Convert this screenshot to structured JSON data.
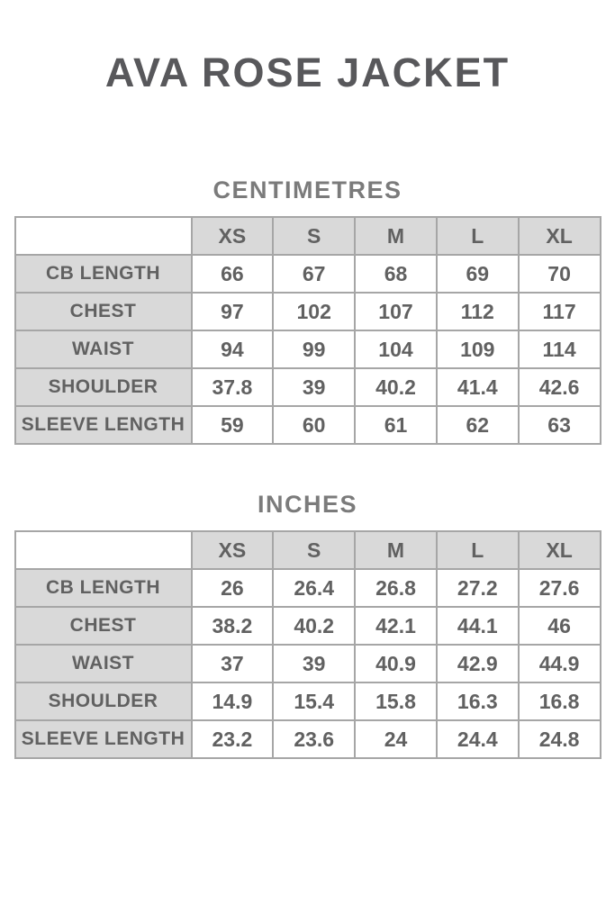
{
  "page": {
    "title": "AVA ROSE JACKET"
  },
  "colors": {
    "page_background": "#ffffff",
    "title_text": "#58585b",
    "heading_text": "#7b7b7b",
    "cell_text": "#616161",
    "grid_border": "#a6a6a6",
    "header_fill": "#d9d9d9",
    "cell_fill": "#ffffff"
  },
  "size_columns": [
    "XS",
    "S",
    "M",
    "L",
    "XL"
  ],
  "tables": [
    {
      "heading": "CENTIMETRES",
      "rows": [
        {
          "label": "CB LENGTH",
          "values": [
            "66",
            "67",
            "68",
            "69",
            "70"
          ]
        },
        {
          "label": "CHEST",
          "values": [
            "97",
            "102",
            "107",
            "112",
            "117"
          ]
        },
        {
          "label": "WAIST",
          "values": [
            "94",
            "99",
            "104",
            "109",
            "114"
          ]
        },
        {
          "label": "SHOULDER",
          "values": [
            "37.8",
            "39",
            "40.2",
            "41.4",
            "42.6"
          ]
        },
        {
          "label": "SLEEVE LENGTH",
          "values": [
            "59",
            "60",
            "61",
            "62",
            "63"
          ]
        }
      ]
    },
    {
      "heading": "INCHES",
      "rows": [
        {
          "label": "CB LENGTH",
          "values": [
            "26",
            "26.4",
            "26.8",
            "27.2",
            "27.6"
          ]
        },
        {
          "label": "CHEST",
          "values": [
            "38.2",
            "40.2",
            "42.1",
            "44.1",
            "46"
          ]
        },
        {
          "label": "WAIST",
          "values": [
            "37",
            "39",
            "40.9",
            "42.9",
            "44.9"
          ]
        },
        {
          "label": "SHOULDER",
          "values": [
            "14.9",
            "15.4",
            "15.8",
            "16.3",
            "16.8"
          ]
        },
        {
          "label": "SLEEVE LENGTH",
          "values": [
            "23.2",
            "23.6",
            "24",
            "24.4",
            "24.8"
          ]
        }
      ]
    }
  ]
}
